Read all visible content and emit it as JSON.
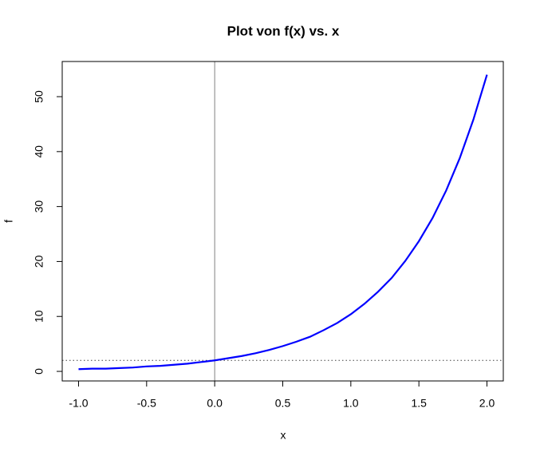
{
  "chart_data": {
    "type": "line",
    "title": "Plot von f(x) vs. x",
    "x_label": "x",
    "y_label": "f",
    "x": [
      -1.0,
      -0.9,
      -0.8,
      -0.7,
      -0.6,
      -0.5,
      -0.4,
      -0.3,
      -0.2,
      -0.1,
      0.0,
      0.1,
      0.2,
      0.3,
      0.4,
      0.5,
      0.6,
      0.7,
      0.8,
      0.9,
      1.0,
      1.1,
      1.2,
      1.3,
      1.4,
      1.5,
      1.6,
      1.7,
      1.8,
      1.9,
      2.0
    ],
    "series": [
      {
        "color": "#0000ff",
        "values": [
          0.4,
          0.5,
          0.5,
          0.6,
          0.7,
          0.9,
          1.0,
          1.2,
          1.4,
          1.7,
          2.0,
          2.4,
          2.8,
          3.3,
          3.9,
          4.6,
          5.4,
          6.3,
          7.5,
          8.8,
          10.4,
          12.3,
          14.5,
          17.0,
          20.1,
          23.7,
          27.9,
          32.9,
          38.8,
          45.8,
          54.0
        ]
      }
    ],
    "xlim": [
      -1.12,
      2.12
    ],
    "ylim": [
      -1.74,
      56.4
    ],
    "xticks": [
      {
        "value": -1,
        "label": "-1.0"
      },
      {
        "value": -0.5,
        "label": "-0.5"
      },
      {
        "value": 0,
        "label": "0.0"
      },
      0.5,
      {
        "value": 1,
        "label": "1.0"
      },
      1.5,
      {
        "value": 2,
        "label": "2.0"
      }
    ],
    "yticks": [
      0,
      10,
      20,
      30,
      40,
      50
    ],
    "vline": 0,
    "vline_color": "#808080",
    "hline": 2,
    "hline_color": "#404040"
  }
}
